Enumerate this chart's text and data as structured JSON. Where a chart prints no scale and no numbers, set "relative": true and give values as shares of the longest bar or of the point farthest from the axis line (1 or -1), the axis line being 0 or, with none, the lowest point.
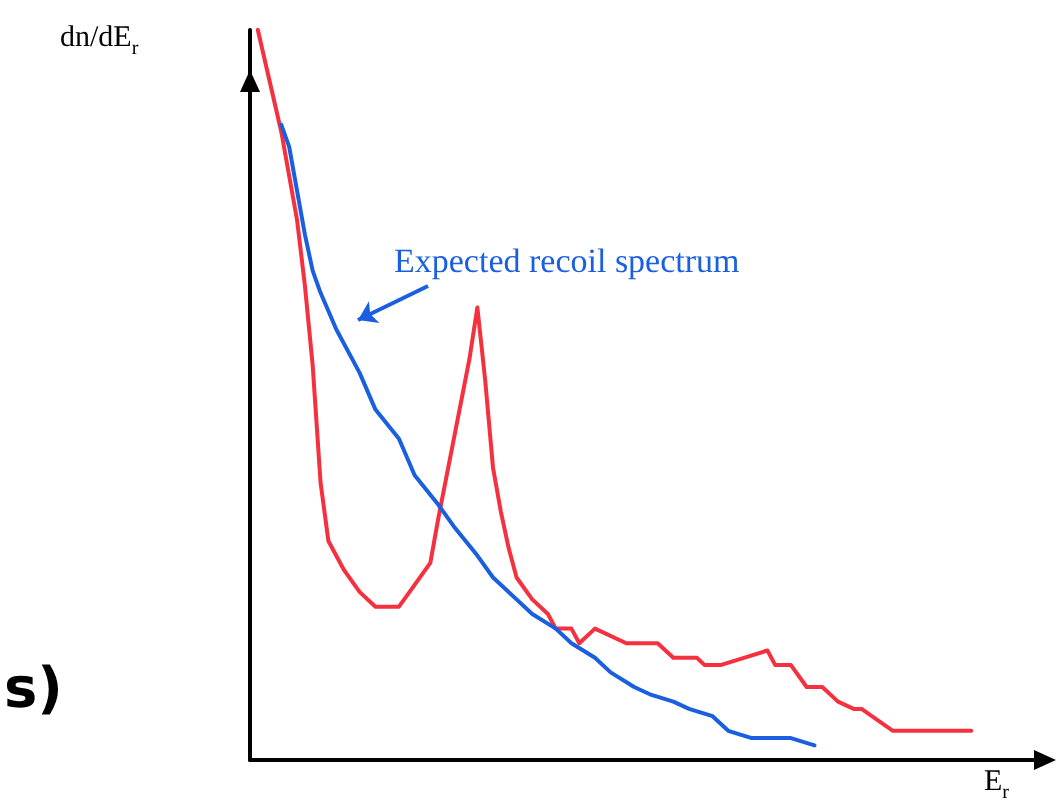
{
  "chart_data": {
    "type": "line",
    "relative": true,
    "xlabel": "E$_{r}$",
    "ylabel": "dn/dE$_{r}$",
    "annotations": [
      "Expected recoil spectrum",
      "s)"
    ],
    "categories": [
      null,
      null,
      null,
      null,
      null,
      null,
      null,
      null,
      null,
      null,
      null,
      null,
      null,
      null,
      null,
      null,
      null,
      null,
      null,
      null,
      null,
      null,
      null,
      null,
      null,
      null,
      null,
      null,
      null,
      null,
      null,
      null,
      null,
      null,
      null,
      null,
      null,
      null,
      null,
      null,
      null,
      null,
      null,
      null,
      null,
      null,
      null,
      null,
      null,
      null,
      null,
      null,
      null,
      null,
      null,
      null,
      null,
      null,
      null,
      null,
      null,
      null,
      null,
      null,
      null,
      null,
      null,
      null,
      null,
      null,
      null,
      null,
      null,
      null,
      null,
      null,
      null,
      null,
      null,
      null,
      null,
      null,
      null,
      null,
      null,
      null,
      null,
      null,
      null,
      null,
      null,
      null,
      null,
      null,
      null,
      null,
      null,
      null,
      null,
      null,
      null
    ],
    "series": [
      {
        "color": "#f5303f",
        "values": [
          null,
          1.0,
          null,
          null,
          0.86,
          null,
          0.74,
          0.65,
          0.54,
          0.38,
          0.3,
          null,
          0.26,
          null,
          0.23,
          null,
          0.21,
          null,
          null,
          0.21,
          null,
          0.24,
          null,
          0.27,
          0.33,
          null,
          0.44,
          null,
          0.55,
          0.62,
          0.52,
          0.4,
          0.34,
          0.29,
          0.25,
          null,
          0.22,
          null,
          0.2,
          0.18,
          null,
          0.18,
          0.16,
          null,
          0.18,
          null,
          null,
          null,
          0.16,
          null,
          null,
          null,
          0.16,
          null,
          0.14,
          null,
          null,
          0.14,
          0.13,
          null,
          0.13,
          null,
          null,
          0.14,
          null,
          null,
          0.15,
          0.13,
          null,
          0.13,
          null,
          0.1,
          null,
          0.1,
          null,
          0.08,
          null,
          0.07,
          0.07,
          null,
          null,
          null,
          0.04,
          null,
          null,
          null,
          0.04,
          null,
          null,
          null,
          null,
          null,
          0.04,
          null,
          null,
          null,
          null,
          null,
          null,
          null,
          null
        ]
      },
      {
        "color": "#1a5fe0",
        "values": [
          null,
          null,
          null,
          null,
          0.87,
          0.84,
          0.78,
          0.72,
          0.67,
          0.64,
          null,
          0.59,
          null,
          null,
          0.53,
          null,
          0.48,
          null,
          null,
          0.44,
          null,
          0.39,
          null,
          null,
          0.35,
          null,
          0.32,
          null,
          null,
          0.28,
          null,
          0.25,
          null,
          null,
          0.22,
          null,
          0.2,
          null,
          null,
          0.18,
          null,
          0.16,
          null,
          null,
          0.14,
          null,
          0.12,
          null,
          null,
          0.1,
          null,
          0.09,
          null,
          null,
          0.08,
          null,
          0.07,
          null,
          null,
          0.06,
          null,
          0.04,
          null,
          null,
          0.03,
          null,
          0.03,
          null,
          null,
          0.03,
          null,
          null,
          0.02,
          null,
          null,
          null,
          null,
          null,
          null,
          null,
          null,
          null,
          null,
          null,
          null,
          null,
          null,
          null,
          null,
          null,
          null,
          null,
          null,
          null,
          null,
          null,
          null,
          null,
          null,
          null,
          null
        ]
      }
    ]
  }
}
